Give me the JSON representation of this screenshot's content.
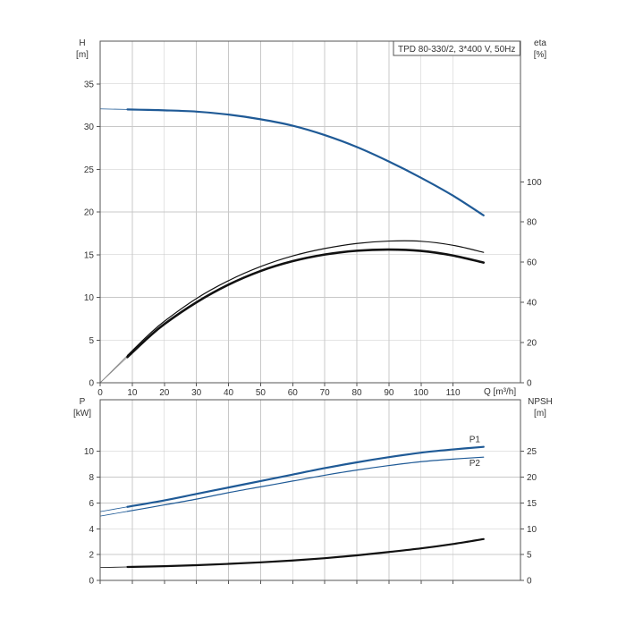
{
  "chart_data": [
    {
      "id": "head-eff",
      "type": "line",
      "title": "TPD 80-330/2, 3*400 V, 50Hz",
      "xlabel": "Q [m³/h]",
      "ylabel_top": "H",
      "ylabel_unit": "[m]",
      "y2label_top": "eta",
      "y2label_unit": "[%]",
      "xlim": [
        0,
        131
      ],
      "ylim": [
        0,
        40
      ],
      "y2lim": [
        0,
        100
      ],
      "xticks": [
        0,
        10,
        20,
        30,
        40,
        50,
        60,
        70,
        80,
        90,
        100,
        110
      ],
      "yticks": [
        0,
        5,
        10,
        15,
        20,
        25,
        30,
        35
      ],
      "y2ticks": [
        0,
        20,
        40,
        60,
        80,
        100
      ],
      "y2_scale": 4.25,
      "grid": true,
      "series": [
        {
          "key": "H",
          "axis": "y",
          "color": "#1f5a96",
          "width": 2.2,
          "ext_start": 0,
          "main_start": 8.5,
          "x": [
            8.5,
            15,
            20,
            30,
            40,
            50,
            60,
            70,
            80,
            90,
            100,
            110,
            119.5
          ],
          "y": [
            32.0,
            31.95,
            31.9,
            31.75,
            31.4,
            30.85,
            30.1,
            29.0,
            27.6,
            25.9,
            24.0,
            21.9,
            19.6
          ]
        },
        {
          "key": "eta1",
          "axis": "y2",
          "color": "#111111",
          "width": 1.2,
          "ext_start": 0,
          "main_start": 8.5,
          "x": [
            8.5,
            15,
            20,
            30,
            40,
            50,
            60,
            70,
            80,
            90,
            100,
            110,
            119.5
          ],
          "y": [
            13.6,
            23.7,
            30.6,
            41.9,
            50.8,
            57.8,
            63.1,
            66.8,
            69.3,
            70.5,
            70.4,
            68.4,
            64.9
          ]
        },
        {
          "key": "eta2",
          "axis": "y2",
          "color": "#111111",
          "width": 2.6,
          "ext_start": 0,
          "main_start": 8.5,
          "x": [
            8.5,
            15,
            20,
            30,
            40,
            50,
            60,
            70,
            80,
            90,
            100,
            110,
            119.5
          ],
          "y": [
            12.8,
            22.5,
            29.2,
            40.0,
            48.8,
            55.6,
            60.5,
            63.8,
            65.7,
            66.3,
            65.6,
            63.3,
            59.8
          ]
        }
      ]
    },
    {
      "id": "power-npsh",
      "type": "line",
      "ylabel_top": "P",
      "ylabel_unit": "[kW]",
      "y2label_top": "NPSH",
      "y2label_unit": "[m]",
      "xlim": [
        0,
        131
      ],
      "ylim": [
        0,
        14
      ],
      "y2lim": [
        0,
        30
      ],
      "yticks": [
        0,
        2,
        4,
        6,
        8,
        10
      ],
      "y2ticks": [
        0,
        5,
        10,
        15,
        20,
        25
      ],
      "y2_scale": 2.5,
      "grid": true,
      "series": [
        {
          "key": "P1",
          "axis": "y",
          "name": "P1",
          "color": "#1f5a96",
          "width": 2.2,
          "ext_start": 0,
          "main_start": 8.5,
          "x": [
            8.5,
            20,
            30,
            40,
            50,
            60,
            70,
            80,
            90,
            100,
            110,
            119.5
          ],
          "y": [
            5.7,
            6.2,
            6.7,
            7.2,
            7.7,
            8.2,
            8.7,
            9.15,
            9.55,
            9.9,
            10.15,
            10.35
          ]
        },
        {
          "key": "P2",
          "axis": "y",
          "name": "P2",
          "color": "#1f5a96",
          "width": 1.2,
          "ext_start": 0,
          "main_start": 8.5,
          "x": [
            8.5,
            20,
            30,
            40,
            50,
            60,
            70,
            80,
            90,
            100,
            110,
            119.5
          ],
          "y": [
            5.35,
            5.85,
            6.3,
            6.8,
            7.25,
            7.7,
            8.15,
            8.55,
            8.9,
            9.2,
            9.4,
            9.55
          ]
        },
        {
          "key": "NPSH",
          "axis": "y2",
          "color": "#111111",
          "width": 2.2,
          "ext_start": 0,
          "main_start": 8.5,
          "x": [
            8.5,
            20,
            30,
            40,
            50,
            60,
            70,
            80,
            90,
            100,
            110,
            119.5
          ],
          "y": [
            2.6,
            2.75,
            2.95,
            3.2,
            3.5,
            3.85,
            4.3,
            4.85,
            5.5,
            6.2,
            7.05,
            8.0
          ]
        }
      ]
    }
  ]
}
